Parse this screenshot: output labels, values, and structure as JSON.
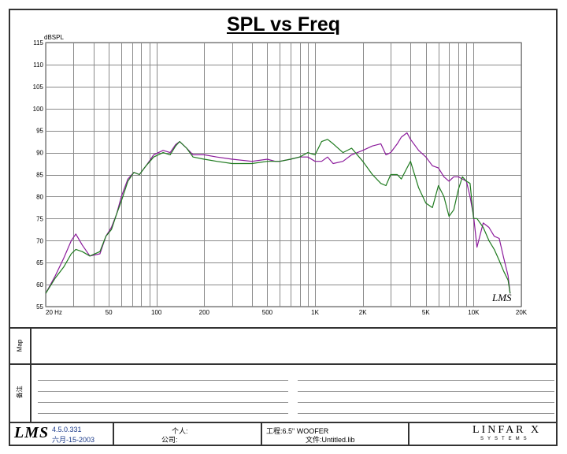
{
  "chart_data": {
    "type": "line",
    "title": "SPL vs Freq",
    "ylabel": "dBSPL",
    "xscale": "log",
    "xlim": [
      20,
      20000
    ],
    "ylim": [
      55,
      115
    ],
    "grid": true,
    "y_ticks": [
      55,
      60,
      65,
      70,
      75,
      80,
      85,
      90,
      95,
      100,
      105,
      110,
      115
    ],
    "x_ticks": [
      {
        "value": 20,
        "label": "20 Hz"
      },
      {
        "value": 50,
        "label": "50"
      },
      {
        "value": 100,
        "label": "100"
      },
      {
        "value": 200,
        "label": "200"
      },
      {
        "value": 500,
        "label": "500"
      },
      {
        "value": 1000,
        "label": "1K"
      },
      {
        "value": 2000,
        "label": "2K"
      },
      {
        "value": 5000,
        "label": "5K"
      },
      {
        "value": 10000,
        "label": "10K"
      },
      {
        "value": 20000,
        "label": "20K"
      }
    ],
    "series": [
      {
        "color": "#8b1a9b",
        "points": [
          [
            20,
            58
          ],
          [
            23,
            62
          ],
          [
            26,
            66
          ],
          [
            29,
            70
          ],
          [
            31,
            71.5
          ],
          [
            34,
            69
          ],
          [
            38,
            66.5
          ],
          [
            44,
            67
          ],
          [
            48,
            71
          ],
          [
            52,
            73
          ],
          [
            56,
            76
          ],
          [
            60,
            80
          ],
          [
            66,
            84
          ],
          [
            72,
            85.5
          ],
          [
            78,
            85
          ],
          [
            86,
            87
          ],
          [
            96,
            89.5
          ],
          [
            110,
            90.5
          ],
          [
            122,
            90
          ],
          [
            132,
            91.8
          ],
          [
            140,
            92.5
          ],
          [
            155,
            91
          ],
          [
            170,
            89.5
          ],
          [
            200,
            89.5
          ],
          [
            240,
            89
          ],
          [
            300,
            88.5
          ],
          [
            400,
            88
          ],
          [
            500,
            88.5
          ],
          [
            560,
            88
          ],
          [
            600,
            88
          ],
          [
            700,
            88.5
          ],
          [
            800,
            89
          ],
          [
            900,
            89
          ],
          [
            1000,
            88
          ],
          [
            1100,
            88
          ],
          [
            1200,
            89
          ],
          [
            1300,
            87.5
          ],
          [
            1500,
            88
          ],
          [
            1700,
            89.5
          ],
          [
            2000,
            90.5
          ],
          [
            2300,
            91.5
          ],
          [
            2600,
            92
          ],
          [
            2800,
            89.5
          ],
          [
            3000,
            90
          ],
          [
            3300,
            92
          ],
          [
            3500,
            93.5
          ],
          [
            3800,
            94.5
          ],
          [
            4000,
            93
          ],
          [
            4500,
            90.5
          ],
          [
            5000,
            89
          ],
          [
            5500,
            87
          ],
          [
            6000,
            86.5
          ],
          [
            6500,
            84.5
          ],
          [
            7000,
            83.5
          ],
          [
            7500,
            84.5
          ],
          [
            8000,
            84.5
          ],
          [
            8500,
            84
          ],
          [
            9000,
            83.5
          ],
          [
            9500,
            80
          ],
          [
            10000,
            75.5
          ],
          [
            10500,
            68.5
          ],
          [
            11500,
            74
          ],
          [
            12500,
            73
          ],
          [
            13500,
            71
          ],
          [
            14500,
            70.5
          ],
          [
            15500,
            66
          ],
          [
            16500,
            62
          ],
          [
            17000,
            58
          ]
        ]
      },
      {
        "color": "#1e7a1e",
        "points": [
          [
            20,
            58
          ],
          [
            23,
            61.5
          ],
          [
            26,
            64
          ],
          [
            29,
            67
          ],
          [
            31,
            68
          ],
          [
            34,
            67.5
          ],
          [
            38,
            66.5
          ],
          [
            44,
            67.5
          ],
          [
            48,
            71
          ],
          [
            52,
            72.5
          ],
          [
            56,
            76
          ],
          [
            60,
            79
          ],
          [
            66,
            83.5
          ],
          [
            72,
            85.5
          ],
          [
            78,
            85
          ],
          [
            86,
            87
          ],
          [
            96,
            89
          ],
          [
            110,
            90
          ],
          [
            122,
            89.5
          ],
          [
            132,
            91.5
          ],
          [
            140,
            92.5
          ],
          [
            155,
            91
          ],
          [
            170,
            89
          ],
          [
            200,
            88.5
          ],
          [
            240,
            88
          ],
          [
            300,
            87.5
          ],
          [
            400,
            87.5
          ],
          [
            500,
            88
          ],
          [
            560,
            88
          ],
          [
            600,
            88
          ],
          [
            700,
            88.5
          ],
          [
            800,
            89
          ],
          [
            900,
            90
          ],
          [
            1000,
            89.5
          ],
          [
            1100,
            92.5
          ],
          [
            1200,
            93
          ],
          [
            1300,
            92
          ],
          [
            1500,
            90
          ],
          [
            1700,
            91
          ],
          [
            2000,
            88
          ],
          [
            2300,
            85
          ],
          [
            2600,
            83
          ],
          [
            2800,
            82.5
          ],
          [
            3000,
            85
          ],
          [
            3300,
            85
          ],
          [
            3500,
            84
          ],
          [
            3800,
            86.5
          ],
          [
            4000,
            88
          ],
          [
            4500,
            82
          ],
          [
            5000,
            78.5
          ],
          [
            5500,
            77.5
          ],
          [
            6000,
            82.5
          ],
          [
            6500,
            80
          ],
          [
            7000,
            75.5
          ],
          [
            7500,
            77
          ],
          [
            8000,
            81.5
          ],
          [
            8500,
            84.5
          ],
          [
            9000,
            83.5
          ],
          [
            9500,
            83
          ],
          [
            10000,
            75
          ],
          [
            10500,
            75
          ],
          [
            11500,
            73
          ],
          [
            12500,
            70
          ],
          [
            13500,
            68
          ],
          [
            14500,
            65.5
          ],
          [
            15500,
            63
          ],
          [
            16500,
            61
          ],
          [
            17000,
            58
          ]
        ]
      }
    ]
  },
  "panels": {
    "map_label": "Map",
    "notes_label": "备注"
  },
  "footer": {
    "version": "4.5.0.331",
    "date": "六月-15-2003",
    "person_label": "个人:",
    "company_label": "公司:",
    "project": "工程:6.5\" WOOFER",
    "file": "文件:Untitled.lib",
    "brand_top": "LINFAR X",
    "brand_bottom": "SYSTEMS"
  },
  "logos": {
    "chart_mark": "LMS",
    "footer_mark": "LMS"
  }
}
